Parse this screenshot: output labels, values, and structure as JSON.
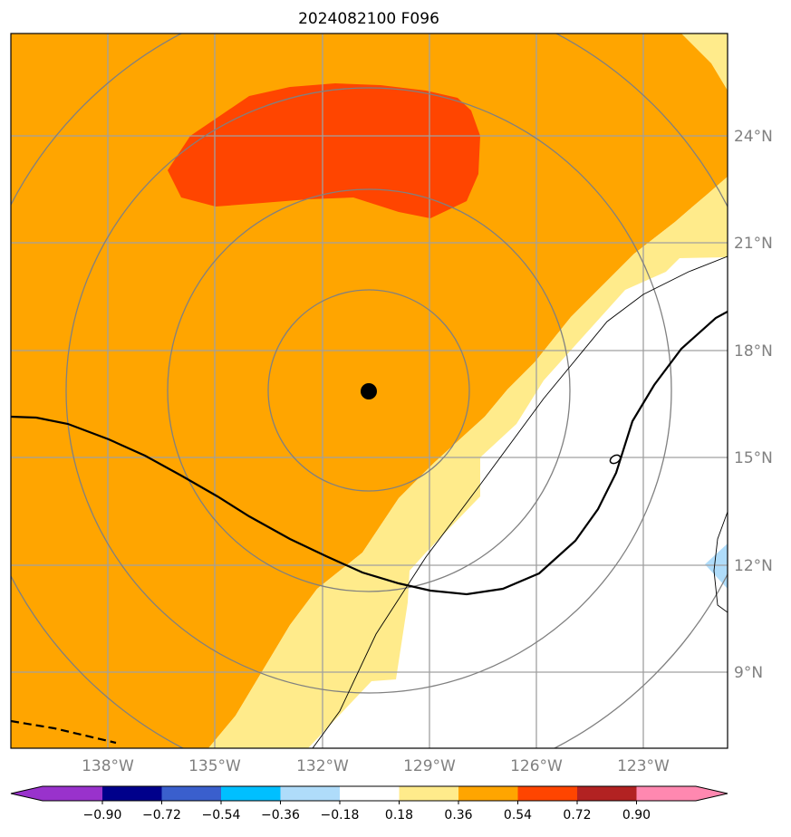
{
  "title": "2024082100 F096",
  "map": {
    "lon_labels": [
      "138°W",
      "135°W",
      "132°W",
      "129°W",
      "126°W",
      "123°W"
    ],
    "lat_labels": [
      "24°N",
      "21°N",
      "18°N",
      "15°N",
      "12°N",
      "9°N"
    ],
    "center_marker": "black-dot",
    "fill_colors": {
      "orange": "#ffa500",
      "red_orange": "#ff4500",
      "light_yellow": "#ffeb8b",
      "white": "#ffffff",
      "light_blue": "#afdcfa"
    }
  },
  "colorbar": {
    "labels": [
      "−0.90",
      "−0.72",
      "−0.54",
      "−0.36",
      "−0.18",
      "0.18",
      "0.36",
      "0.54",
      "0.72",
      "0.90"
    ],
    "colors": [
      "#9932cc",
      "#00008b",
      "#3a5fcd",
      "#00bfff",
      "#afdcfa",
      "#ffffff",
      "#ffeb8b",
      "#ffa500",
      "#ff4500",
      "#b22222",
      "#ff88b0"
    ]
  }
}
